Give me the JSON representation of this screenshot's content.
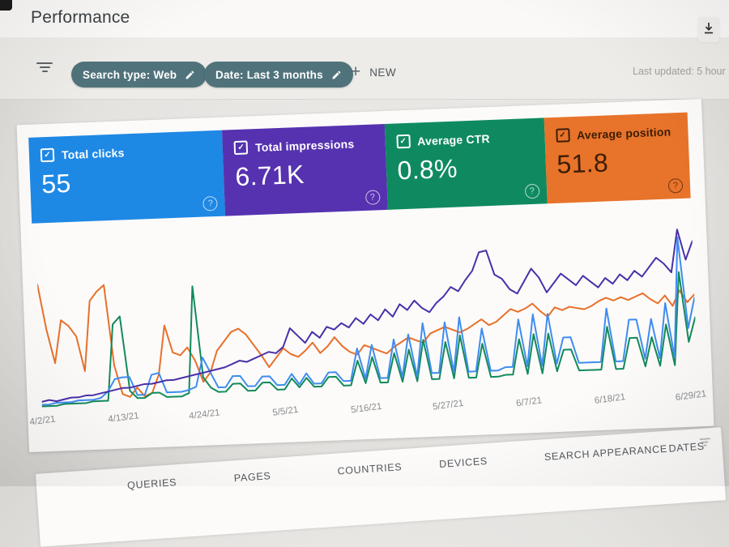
{
  "header": {
    "title": "Performance"
  },
  "filter_bar": {
    "chips": [
      {
        "label": "Search type: Web"
      },
      {
        "label": "Date: Last 3 months"
      }
    ],
    "new_button_label": "NEW",
    "last_updated": "Last updated: 5 hour"
  },
  "theme": {
    "chip_bg": "#50737b",
    "titlebar_bg": "#faf9f7",
    "panel_bg": "#fcfbfa"
  },
  "icons": {
    "export": "download-icon",
    "filter": "filter-lines-icon",
    "edit": "pencil-icon",
    "help": "question-circle-icon",
    "checkbox": "checked-checkbox-icon"
  },
  "metric_cards": [
    {
      "label": "Total clicks",
      "value": "55",
      "color": "#1e88e5",
      "text_color": "#ffffff",
      "checked": true
    },
    {
      "label": "Total impressions",
      "value": "6.71K",
      "color": "#5632b0",
      "text_color": "#ffffff",
      "checked": true
    },
    {
      "label": "Average CTR",
      "value": "0.8%",
      "color": "#0f8a60",
      "text_color": "#ffffff",
      "checked": true
    },
    {
      "label": "Average position",
      "value": "51.8",
      "color": "#e8732a",
      "text_color": "#3c1e05",
      "checked": true
    }
  ],
  "chart_data": {
    "type": "line",
    "title": "",
    "xlabel": "date",
    "grid": false,
    "legend_position": "none (legend is the metric cards)",
    "x_tick_labels": [
      "4/2/21",
      "4/13/21",
      "4/24/21",
      "5/5/21",
      "5/16/21",
      "5/27/21",
      "6/7/21",
      "6/18/21",
      "6/29/21"
    ],
    "tick_day_indices": [
      0,
      11,
      22,
      33,
      44,
      55,
      66,
      77,
      88
    ],
    "x_days": 90,
    "y_unit": "relative plotted height, % of chart (multi-axis daily series, estimated from pixels)",
    "ylim": [
      0,
      100
    ],
    "series": [
      {
        "name": "Total clicks",
        "color": "#3f8cf0",
        "values": [
          1,
          1,
          2,
          2,
          2,
          3,
          3,
          3,
          4,
          8,
          16,
          17,
          17,
          5,
          5,
          18,
          19,
          6,
          6,
          6,
          7,
          9,
          28,
          18,
          8,
          8,
          15,
          15,
          8,
          8,
          14,
          14,
          8,
          8,
          15,
          8,
          15,
          8,
          8,
          15,
          15,
          9,
          9,
          30,
          10,
          32,
          10,
          10,
          35,
          10,
          38,
          10,
          45,
          12,
          12,
          45,
          12,
          48,
          12,
          12,
          40,
          12,
          12,
          14,
          14,
          45,
          14,
          48,
          14,
          48,
          15,
          32,
          32,
          15,
          15,
          15,
          15,
          50,
          15,
          15,
          42,
          42,
          16,
          42,
          16,
          52,
          16,
          95,
          35,
          55
        ]
      },
      {
        "name": "Total impressions",
        "color": "#4a30a8",
        "values": [
          3,
          4,
          3,
          4,
          5,
          5,
          6,
          6,
          7,
          8,
          9,
          10,
          10,
          11,
          12,
          12,
          13,
          14,
          14,
          15,
          16,
          17,
          18,
          19,
          20,
          21,
          23,
          25,
          24,
          26,
          28,
          30,
          29,
          33,
          45,
          40,
          35,
          42,
          38,
          45,
          43,
          47,
          44,
          50,
          46,
          52,
          48,
          55,
          50,
          58,
          54,
          60,
          55,
          52,
          58,
          62,
          68,
          65,
          72,
          78,
          90,
          91,
          75,
          72,
          65,
          62,
          70,
          78,
          72,
          62,
          68,
          74,
          70,
          66,
          72,
          68,
          64,
          70,
          66,
          72,
          68,
          74,
          70,
          76,
          82,
          78,
          72,
          100,
          80,
          92
        ]
      },
      {
        "name": "Average CTR",
        "color": "#128a5a",
        "values": [
          0,
          0,
          0,
          1,
          1,
          1,
          1,
          2,
          2,
          2,
          52,
          57,
          8,
          3,
          3,
          6,
          6,
          3,
          3,
          3,
          5,
          75,
          15,
          8,
          5,
          5,
          10,
          10,
          5,
          5,
          10,
          10,
          5,
          5,
          12,
          6,
          12,
          6,
          6,
          12,
          12,
          6,
          6,
          22,
          7,
          24,
          7,
          7,
          26,
          7,
          28,
          7,
          34,
          8,
          8,
          32,
          8,
          36,
          8,
          8,
          30,
          8,
          8,
          9,
          9,
          32,
          9,
          35,
          9,
          35,
          10,
          24,
          24,
          10,
          10,
          10,
          10,
          38,
          10,
          10,
          30,
          30,
          11,
          30,
          11,
          38,
          11,
          72,
          26,
          42
        ]
      },
      {
        "name": "Average position",
        "color": "#e8702a",
        "values": [
          80,
          50,
          28,
          56,
          52,
          45,
          22,
          68,
          74,
          78,
          25,
          6,
          4,
          10,
          4,
          6,
          18,
          50,
          32,
          30,
          35,
          26,
          12,
          18,
          32,
          38,
          44,
          46,
          42,
          35,
          28,
          20,
          26,
          32,
          28,
          26,
          30,
          35,
          28,
          32,
          38,
          32,
          28,
          26,
          32,
          30,
          28,
          26,
          30,
          33,
          36,
          34,
          32,
          38,
          40,
          42,
          40,
          38,
          40,
          43,
          46,
          42,
          44,
          48,
          52,
          50,
          52,
          55,
          50,
          46,
          52,
          50,
          52,
          51,
          50,
          52,
          55,
          57,
          55,
          57,
          55,
          57,
          59,
          55,
          52,
          57,
          50,
          60,
          52,
          57
        ]
      }
    ]
  },
  "tabs": [
    "QUERIES",
    "PAGES",
    "COUNTRIES",
    "DEVICES",
    "SEARCH APPEARANCE",
    "DATES"
  ]
}
